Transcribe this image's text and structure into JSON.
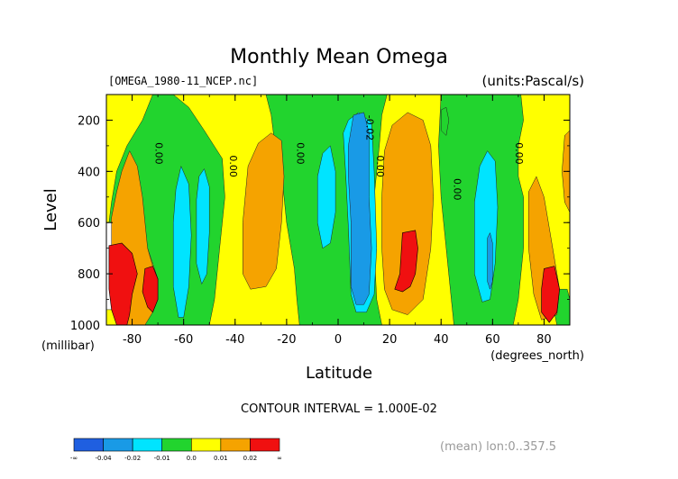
{
  "chart_data": {
    "type": "heatmap",
    "title": "Monthly Mean Omega",
    "file_label": "[OMEGA_1980-11_NCEP.nc]",
    "units_label": "(units:Pascal/s)",
    "xlabel": "Latitude",
    "ylabel": "Level",
    "y_unit_label": "(millibar)",
    "x_unit_label": "(degrees_north)",
    "xlim": [
      -90,
      90
    ],
    "ylim": [
      1000,
      100
    ],
    "x_ticks": [
      -80,
      -60,
      -40,
      -20,
      0,
      20,
      40,
      60,
      80
    ],
    "y_ticks": [
      200,
      400,
      600,
      800,
      1000
    ],
    "contour_interval_text": "CONTOUR INTERVAL = 1.000E-02",
    "mean_text": "(mean) lon:0..357.5",
    "contour_labels": [
      {
        "text": "0.00",
        "x": -71,
        "y": 330
      },
      {
        "text": "0.00",
        "x": -42,
        "y": 380
      },
      {
        "text": "0.00",
        "x": -16,
        "y": 330
      },
      {
        "text": "-0.02",
        "x": 11,
        "y": 230
      },
      {
        "text": "0.00",
        "x": 15,
        "y": 380
      },
      {
        "text": "0.00",
        "x": 45,
        "y": 470
      },
      {
        "text": "0.00",
        "x": 69,
        "y": 330
      }
    ],
    "colors": {
      "lt_-0.04": "#1f5fe0",
      "-0.04_-0.02": "#199ae6",
      "-0.02_-0.01": "#00e4ff",
      "-0.01_0.0": "#22d42e",
      "0.0_0.01": "#ffff00",
      "0.01_0.02": "#f5a300",
      "gt_0.02": "#f01010"
    },
    "legend": {
      "ticks": [
        "-∞",
        "-0.04",
        "-0.02",
        "-0.01",
        "0.0",
        "0.01",
        "0.02",
        "∞"
      ],
      "colors": [
        "#1f5fe0",
        "#199ae6",
        "#00e4ff",
        "#22d42e",
        "#ffff00",
        "#f5a300",
        "#f01010"
      ]
    },
    "regions": [
      {
        "level": "gt_0.02",
        "points": [
          [
            -89,
            690
          ],
          [
            -84,
            680
          ],
          [
            -80,
            720
          ],
          [
            -78,
            800
          ],
          [
            -80,
            880
          ],
          [
            -81,
            960
          ],
          [
            -82,
            1000
          ],
          [
            -86,
            1000
          ],
          [
            -88,
            940
          ],
          [
            -89,
            860
          ]
        ]
      },
      {
        "level": "gt_0.02",
        "points": [
          [
            -75,
            780
          ],
          [
            -72,
            770
          ],
          [
            -70,
            820
          ],
          [
            -70,
            900
          ],
          [
            -72,
            950
          ],
          [
            -74,
            930
          ],
          [
            -76,
            870
          ]
        ]
      },
      {
        "level": "gt_0.02",
        "points": [
          [
            25,
            640
          ],
          [
            30,
            630
          ],
          [
            31,
            700
          ],
          [
            30,
            800
          ],
          [
            28,
            850
          ],
          [
            25,
            870
          ],
          [
            22,
            860
          ],
          [
            24,
            800
          ]
        ]
      },
      {
        "level": "gt_0.02",
        "points": [
          [
            80,
            780
          ],
          [
            84,
            770
          ],
          [
            86,
            860
          ],
          [
            85,
            950
          ],
          [
            82,
            990
          ],
          [
            79,
            950
          ],
          [
            79,
            860
          ]
        ]
      }
    ]
  }
}
